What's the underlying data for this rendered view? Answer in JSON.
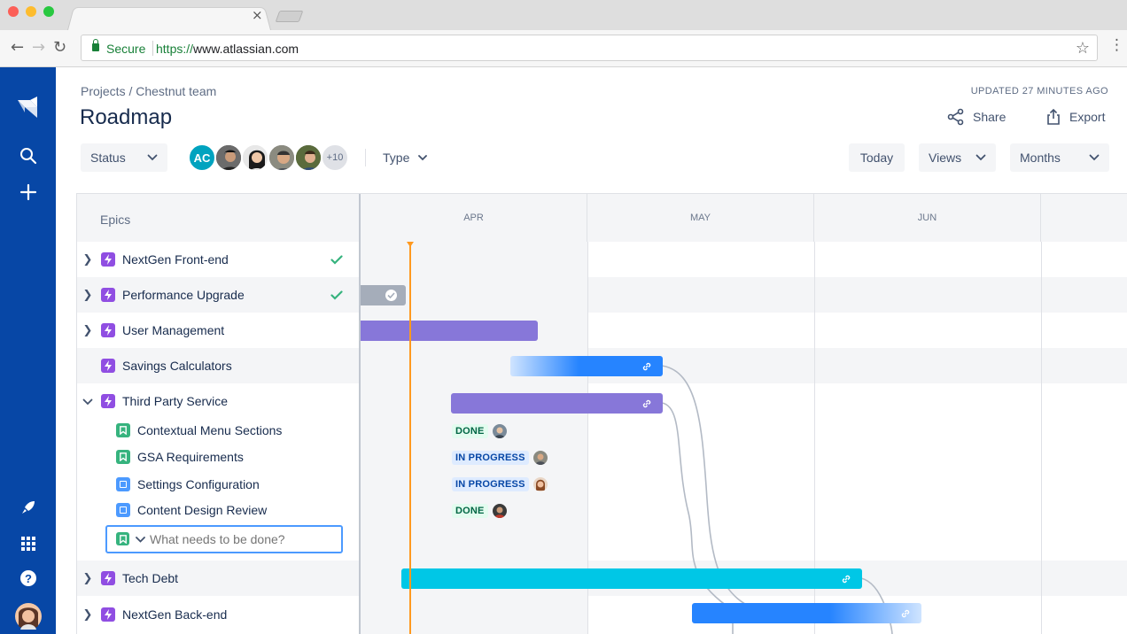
{
  "browser": {
    "secure_label": "Secure",
    "url_protocol": "https://",
    "url_host": "www.atlassian.com",
    "tab_close": "×"
  },
  "header": {
    "breadcrumb": "Projects / Chestnut team",
    "updated": "UPDATED 27 MINUTES AGO",
    "title": "Roadmap",
    "share_label": "Share",
    "export_label": "Export"
  },
  "filters": {
    "status_label": "Status",
    "avatar_initials": "AC",
    "avatar_more": "+10",
    "type_label": "Type",
    "today_label": "Today",
    "views_label": "Views",
    "months_label": "Months"
  },
  "grid": {
    "epics_header": "Epics",
    "months": [
      "APR",
      "MAY",
      "JUN"
    ]
  },
  "rows": [
    {
      "label": "NextGen Front-end",
      "done": true
    },
    {
      "label": "Performance Upgrade",
      "done": true
    },
    {
      "label": "User Management",
      "done": false
    },
    {
      "label": "Savings Calculators",
      "done": false
    },
    {
      "label": "Third Party Service",
      "done": false,
      "expanded": true
    }
  ],
  "children": [
    {
      "label": "Contextual Menu Sections",
      "type": "story",
      "status": "DONE"
    },
    {
      "label": "GSA Requirements",
      "type": "story",
      "status": "IN PROGRESS"
    },
    {
      "label": "Settings Configuration",
      "type": "task",
      "status": "IN PROGRESS"
    },
    {
      "label": "Content Design Review",
      "type": "task",
      "status": "DONE"
    }
  ],
  "new_issue_placeholder": "What needs to be done?",
  "rows_bottom": [
    {
      "label": "Tech Debt"
    },
    {
      "label": "NextGen Back-end"
    }
  ],
  "colors": {
    "nav": "#0747a6",
    "epic": "#904ee2",
    "bar_purple": "#8777d9",
    "bar_blue": "#2684ff",
    "bar_teal": "#00c7e6",
    "today_line": "#ff991f"
  }
}
